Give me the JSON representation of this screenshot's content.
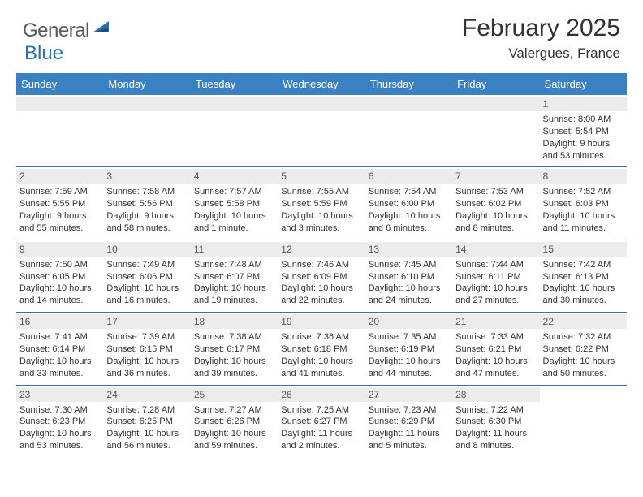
{
  "logo": {
    "text1": "General",
    "text2": "Blue"
  },
  "title": "February 2025",
  "location": "Valergues, France",
  "colors": {
    "header_bg": "#3a81c4",
    "border": "#3a6fa5",
    "daynum_bg": "#ececec",
    "text": "#333333",
    "logo_gray": "#5a5a5a",
    "logo_blue": "#2a72b5"
  },
  "day_headers": [
    "Sunday",
    "Monday",
    "Tuesday",
    "Wednesday",
    "Thursday",
    "Friday",
    "Saturday"
  ],
  "weeks": [
    [
      null,
      null,
      null,
      null,
      null,
      null,
      {
        "n": "1",
        "sr": "Sunrise: 8:00 AM",
        "ss": "Sunset: 5:54 PM",
        "d1": "Daylight: 9 hours",
        "d2": "and 53 minutes."
      }
    ],
    [
      {
        "n": "2",
        "sr": "Sunrise: 7:59 AM",
        "ss": "Sunset: 5:55 PM",
        "d1": "Daylight: 9 hours",
        "d2": "and 55 minutes."
      },
      {
        "n": "3",
        "sr": "Sunrise: 7:58 AM",
        "ss": "Sunset: 5:56 PM",
        "d1": "Daylight: 9 hours",
        "d2": "and 58 minutes."
      },
      {
        "n": "4",
        "sr": "Sunrise: 7:57 AM",
        "ss": "Sunset: 5:58 PM",
        "d1": "Daylight: 10 hours",
        "d2": "and 1 minute."
      },
      {
        "n": "5",
        "sr": "Sunrise: 7:55 AM",
        "ss": "Sunset: 5:59 PM",
        "d1": "Daylight: 10 hours",
        "d2": "and 3 minutes."
      },
      {
        "n": "6",
        "sr": "Sunrise: 7:54 AM",
        "ss": "Sunset: 6:00 PM",
        "d1": "Daylight: 10 hours",
        "d2": "and 6 minutes."
      },
      {
        "n": "7",
        "sr": "Sunrise: 7:53 AM",
        "ss": "Sunset: 6:02 PM",
        "d1": "Daylight: 10 hours",
        "d2": "and 8 minutes."
      },
      {
        "n": "8",
        "sr": "Sunrise: 7:52 AM",
        "ss": "Sunset: 6:03 PM",
        "d1": "Daylight: 10 hours",
        "d2": "and 11 minutes."
      }
    ],
    [
      {
        "n": "9",
        "sr": "Sunrise: 7:50 AM",
        "ss": "Sunset: 6:05 PM",
        "d1": "Daylight: 10 hours",
        "d2": "and 14 minutes."
      },
      {
        "n": "10",
        "sr": "Sunrise: 7:49 AM",
        "ss": "Sunset: 6:06 PM",
        "d1": "Daylight: 10 hours",
        "d2": "and 16 minutes."
      },
      {
        "n": "11",
        "sr": "Sunrise: 7:48 AM",
        "ss": "Sunset: 6:07 PM",
        "d1": "Daylight: 10 hours",
        "d2": "and 19 minutes."
      },
      {
        "n": "12",
        "sr": "Sunrise: 7:46 AM",
        "ss": "Sunset: 6:09 PM",
        "d1": "Daylight: 10 hours",
        "d2": "and 22 minutes."
      },
      {
        "n": "13",
        "sr": "Sunrise: 7:45 AM",
        "ss": "Sunset: 6:10 PM",
        "d1": "Daylight: 10 hours",
        "d2": "and 24 minutes."
      },
      {
        "n": "14",
        "sr": "Sunrise: 7:44 AM",
        "ss": "Sunset: 6:11 PM",
        "d1": "Daylight: 10 hours",
        "d2": "and 27 minutes."
      },
      {
        "n": "15",
        "sr": "Sunrise: 7:42 AM",
        "ss": "Sunset: 6:13 PM",
        "d1": "Daylight: 10 hours",
        "d2": "and 30 minutes."
      }
    ],
    [
      {
        "n": "16",
        "sr": "Sunrise: 7:41 AM",
        "ss": "Sunset: 6:14 PM",
        "d1": "Daylight: 10 hours",
        "d2": "and 33 minutes."
      },
      {
        "n": "17",
        "sr": "Sunrise: 7:39 AM",
        "ss": "Sunset: 6:15 PM",
        "d1": "Daylight: 10 hours",
        "d2": "and 36 minutes."
      },
      {
        "n": "18",
        "sr": "Sunrise: 7:38 AM",
        "ss": "Sunset: 6:17 PM",
        "d1": "Daylight: 10 hours",
        "d2": "and 39 minutes."
      },
      {
        "n": "19",
        "sr": "Sunrise: 7:36 AM",
        "ss": "Sunset: 6:18 PM",
        "d1": "Daylight: 10 hours",
        "d2": "and 41 minutes."
      },
      {
        "n": "20",
        "sr": "Sunrise: 7:35 AM",
        "ss": "Sunset: 6:19 PM",
        "d1": "Daylight: 10 hours",
        "d2": "and 44 minutes."
      },
      {
        "n": "21",
        "sr": "Sunrise: 7:33 AM",
        "ss": "Sunset: 6:21 PM",
        "d1": "Daylight: 10 hours",
        "d2": "and 47 minutes."
      },
      {
        "n": "22",
        "sr": "Sunrise: 7:32 AM",
        "ss": "Sunset: 6:22 PM",
        "d1": "Daylight: 10 hours",
        "d2": "and 50 minutes."
      }
    ],
    [
      {
        "n": "23",
        "sr": "Sunrise: 7:30 AM",
        "ss": "Sunset: 6:23 PM",
        "d1": "Daylight: 10 hours",
        "d2": "and 53 minutes."
      },
      {
        "n": "24",
        "sr": "Sunrise: 7:28 AM",
        "ss": "Sunset: 6:25 PM",
        "d1": "Daylight: 10 hours",
        "d2": "and 56 minutes."
      },
      {
        "n": "25",
        "sr": "Sunrise: 7:27 AM",
        "ss": "Sunset: 6:26 PM",
        "d1": "Daylight: 10 hours",
        "d2": "and 59 minutes."
      },
      {
        "n": "26",
        "sr": "Sunrise: 7:25 AM",
        "ss": "Sunset: 6:27 PM",
        "d1": "Daylight: 11 hours",
        "d2": "and 2 minutes."
      },
      {
        "n": "27",
        "sr": "Sunrise: 7:23 AM",
        "ss": "Sunset: 6:29 PM",
        "d1": "Daylight: 11 hours",
        "d2": "and 5 minutes."
      },
      {
        "n": "28",
        "sr": "Sunrise: 7:22 AM",
        "ss": "Sunset: 6:30 PM",
        "d1": "Daylight: 11 hours",
        "d2": "and 8 minutes."
      },
      null
    ]
  ]
}
